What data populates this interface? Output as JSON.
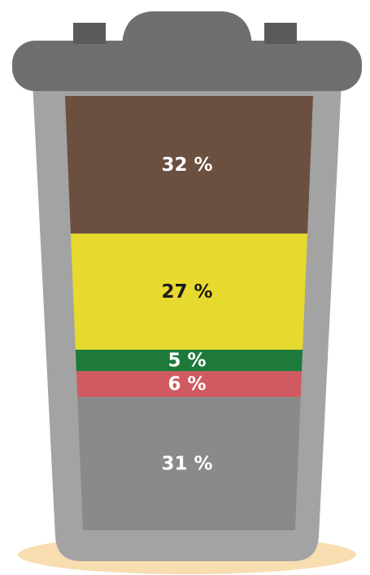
{
  "chart_data": {
    "type": "stacked-bar",
    "values": [
      32,
      27,
      5,
      6,
      31
    ],
    "value_labels": [
      "32 %",
      "27 %",
      "5 %",
      "6 %",
      "31 %"
    ],
    "colors": [
      "#6b4f3f",
      "#e8d92e",
      "#1e7a3a",
      "#d05a60",
      "#8a8a8a"
    ],
    "label_colors": [
      "#ffffff",
      "#1a1a1a",
      "#ffffff",
      "#ffffff",
      "#ffffff"
    ]
  }
}
